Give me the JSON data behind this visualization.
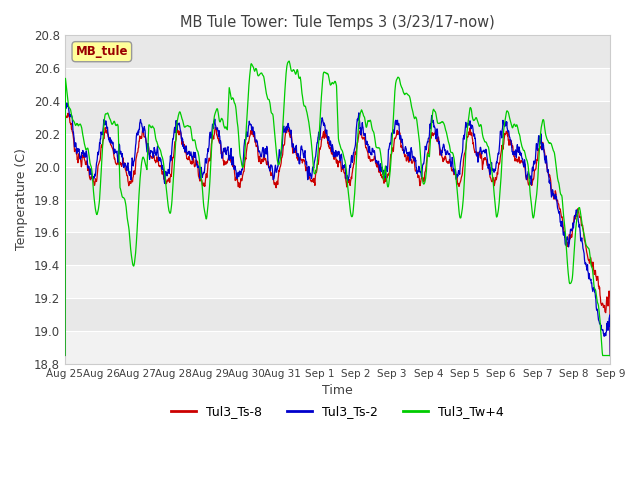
{
  "title": "MB Tule Tower: Tule Temps 3 (3/23/17-now)",
  "xlabel": "Time",
  "ylabel": "Temperature (C)",
  "ylim": [
    18.8,
    20.8
  ],
  "yticks": [
    18.8,
    19.0,
    19.2,
    19.4,
    19.6,
    19.8,
    20.0,
    20.2,
    20.4,
    20.6,
    20.8
  ],
  "xtick_labels": [
    "Aug 25",
    "Aug 26",
    "Aug 27",
    "Aug 28",
    "Aug 29",
    "Aug 30",
    "Aug 31",
    "Sep 1",
    "Sep 2",
    "Sep 3",
    "Sep 4",
    "Sep 5",
    "Sep 6",
    "Sep 7",
    "Sep 8",
    "Sep 9"
  ],
  "legend_entries": [
    "Tul3_Ts-8",
    "Tul3_Ts-2",
    "Tul3_Tw+4"
  ],
  "legend_colors": [
    "#cc0000",
    "#0000cc",
    "#00cc00"
  ],
  "line_colors": [
    "#cc0000",
    "#0000cc",
    "#00cc00"
  ],
  "background_color": "#ffffff",
  "band_color1": "#e8e8e8",
  "band_color2": "#f2f2f2",
  "grid_color": "#ffffff",
  "title_color": "#404040",
  "label_box_color": "#ffff99",
  "label_box_text": "MB_tule",
  "label_box_text_color": "#990000"
}
